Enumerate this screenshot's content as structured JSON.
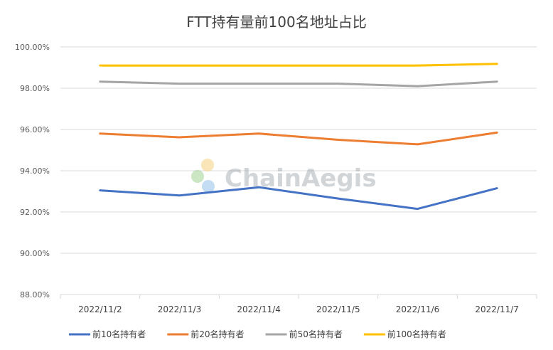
{
  "chart_data": {
    "type": "line",
    "title": "FTT持有量前100名地址占比",
    "categories": [
      "2022/11/2",
      "2022/11/3",
      "2022/11/4",
      "2022/11/5",
      "2022/11/6",
      "2022/11/7"
    ],
    "ylim": [
      88,
      100
    ],
    "yticks": [
      88,
      90,
      92,
      94,
      96,
      98,
      100
    ],
    "ytick_labels": [
      "88.00%",
      "90.00%",
      "92.00%",
      "94.00%",
      "96.00%",
      "98.00%",
      "100.00%"
    ],
    "grid": true,
    "legend_position": "bottom",
    "series": [
      {
        "name": "前10名持有者",
        "color": "#4472C4",
        "values": [
          93.05,
          92.8,
          93.2,
          92.65,
          92.15,
          93.15
        ]
      },
      {
        "name": "前20名持有者",
        "color": "#ED7D31",
        "values": [
          95.8,
          95.62,
          95.8,
          95.5,
          95.28,
          95.85
        ]
      },
      {
        "name": "前50名持有者",
        "color": "#A5A5A5",
        "values": [
          98.32,
          98.22,
          98.22,
          98.22,
          98.1,
          98.32
        ]
      },
      {
        "name": "前100名持有者",
        "color": "#FFC000",
        "values": [
          99.1,
          99.1,
          99.1,
          99.1,
          99.1,
          99.18
        ]
      }
    ]
  },
  "watermark": {
    "text": "ChainAegis"
  }
}
